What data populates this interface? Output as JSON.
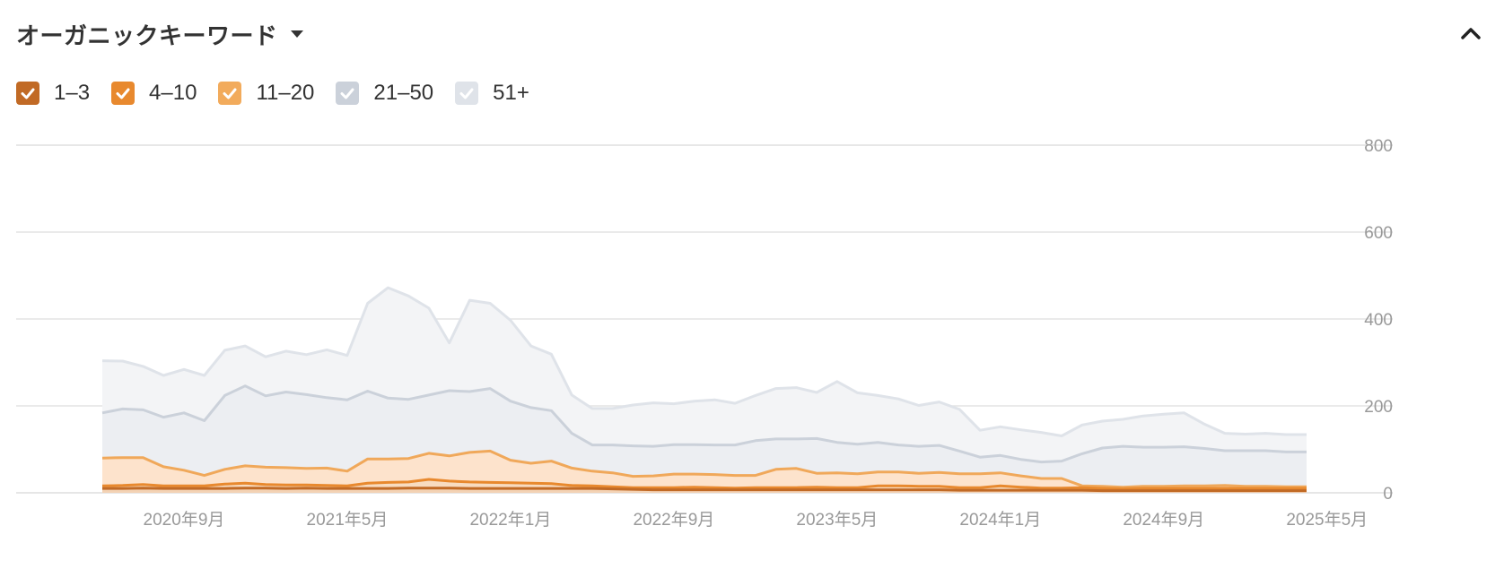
{
  "header": {
    "title": "オーガニックキーワード"
  },
  "legend": [
    {
      "label": "1–3",
      "color": "#c16a25"
    },
    {
      "label": "4–10",
      "color": "#e8892e"
    },
    {
      "label": "11–20",
      "color": "#f2ab5c"
    },
    {
      "label": "21–50",
      "color": "#cbd1da"
    },
    {
      "label": "51+",
      "color": "#dfe3e9"
    }
  ],
  "chart_data": {
    "type": "area",
    "stacked": true,
    "title": "",
    "xlabel": "",
    "ylabel": "",
    "ylim": [
      0,
      800
    ],
    "y_ticks": [
      "800",
      "600",
      "400",
      "200",
      "0"
    ],
    "y_tick_values": [
      800,
      600,
      400,
      200,
      0
    ],
    "x_ticks": [
      "2020年9月",
      "2021年5月",
      "2022年1月",
      "2022年9月",
      "2023年5月",
      "2024年1月",
      "2024年9月",
      "2025年5月"
    ],
    "x_tick_months": [
      4,
      12,
      20,
      28,
      36,
      44,
      52,
      60
    ],
    "month_start": 0,
    "month_end": 59,
    "grid": true,
    "series": [
      {
        "name": "1–3",
        "color": "#c16a25",
        "values": [
          10,
          10,
          11,
          10,
          10,
          10,
          10,
          11,
          11,
          10,
          11,
          10,
          10,
          10,
          10,
          11,
          11,
          11,
          10,
          10,
          10,
          10,
          10,
          10,
          10,
          9,
          8,
          7,
          7,
          7,
          7,
          7,
          7,
          7,
          7,
          7,
          7,
          7,
          7,
          7,
          7,
          7,
          6,
          6,
          6,
          6,
          6,
          6,
          6,
          5,
          5,
          5,
          5,
          5,
          5,
          5,
          5,
          5,
          5,
          5
        ]
      },
      {
        "name": "4–10",
        "color": "#e8892e",
        "values": [
          6,
          7,
          8,
          6,
          6,
          6,
          10,
          11,
          8,
          8,
          7,
          7,
          6,
          12,
          14,
          14,
          20,
          16,
          15,
          14,
          13,
          12,
          11,
          7,
          6,
          5,
          4,
          5,
          5,
          6,
          5,
          4,
          5,
          5,
          5,
          6,
          5,
          5,
          9,
          9,
          8,
          8,
          6,
          6,
          10,
          7,
          5,
          5,
          6,
          5,
          4,
          5,
          5,
          5,
          5,
          5,
          5,
          5,
          5,
          5
        ]
      },
      {
        "name": "11–20",
        "color": "#f2ab5c",
        "values": [
          64,
          64,
          62,
          44,
          36,
          24,
          34,
          40,
          40,
          40,
          38,
          40,
          34,
          56,
          54,
          54,
          60,
          58,
          68,
          72,
          52,
          46,
          52,
          40,
          34,
          32,
          26,
          27,
          31,
          30,
          30,
          29,
          28,
          42,
          44,
          32,
          34,
          32,
          32,
          32,
          30,
          32,
          32,
          32,
          30,
          26,
          22,
          22,
          4,
          5,
          4,
          5,
          5,
          6,
          6,
          7,
          5,
          5,
          4,
          4
        ]
      },
      {
        "name": "21–50",
        "color": "#cbd1da",
        "values": [
          104,
          112,
          110,
          114,
          132,
          126,
          170,
          184,
          164,
          174,
          170,
          162,
          164,
          156,
          140,
          136,
          134,
          150,
          140,
          144,
          136,
          128,
          116,
          80,
          60,
          64,
          70,
          68,
          68,
          68,
          68,
          70,
          80,
          70,
          68,
          80,
          70,
          68,
          68,
          62,
          62,
          62,
          52,
          38,
          40,
          38,
          38,
          40,
          74,
          88,
          94,
          90,
          90,
          90,
          86,
          80,
          82,
          82,
          80,
          80
        ]
      },
      {
        "name": "51+",
        "color": "#dfe3e9",
        "values": [
          120,
          110,
          100,
          96,
          100,
          104,
          104,
          92,
          90,
          94,
          92,
          110,
          102,
          202,
          254,
          238,
          200,
          110,
          210,
          196,
          186,
          142,
          130,
          88,
          84,
          84,
          94,
          100,
          94,
          100,
          104,
          96,
          104,
          116,
          118,
          106,
          140,
          118,
          108,
          106,
          94,
          100,
          96,
          62,
          66,
          68,
          68,
          58,
          66,
          62,
          62,
          72,
          76,
          78,
          56,
          40,
          38,
          40,
          40,
          40
        ]
      }
    ]
  }
}
